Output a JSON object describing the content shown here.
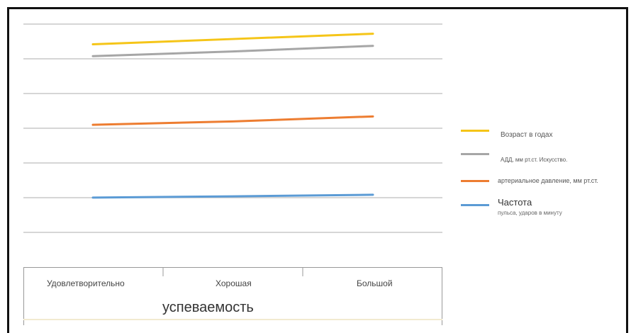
{
  "chart_data": {
    "type": "line",
    "categories": [
      "Удовлетворительно",
      "Хорошая",
      "Большой"
    ],
    "series": [
      {
        "name": "Возраст в годах",
        "values": [
          5.35,
          5.52,
          5.69
        ],
        "color": "#f5c518"
      },
      {
        "name": "АДД, мм рт.ст. Искусство.",
        "values": [
          4.97,
          5.12,
          5.3
        ],
        "color": "#a6a6a6"
      },
      {
        "name": "артериальное давление, мм рт.ст.",
        "values": [
          2.76,
          2.87,
          3.03
        ],
        "color": "#ed7d31"
      },
      {
        "name": "Частота",
        "name_sub": "пульса, ударов в минуту",
        "values": [
          0.42,
          0.46,
          0.51
        ],
        "color": "#5b9bd5"
      }
    ],
    "xlabel": "успеваемость",
    "ylim": [
      -0.7,
      6.0
    ],
    "grid": true,
    "legend_position": "right"
  }
}
